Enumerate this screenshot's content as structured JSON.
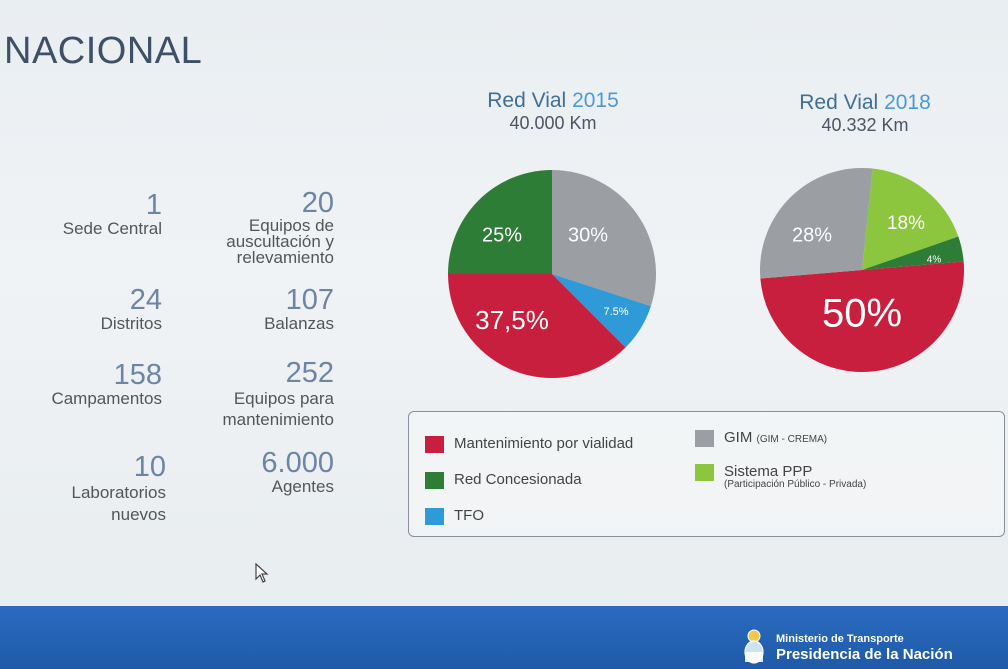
{
  "header": {
    "title": "NACIONAL"
  },
  "stats": [
    {
      "num": "1",
      "label": "Sede Central"
    },
    {
      "num": "20",
      "label": "Equipos de auscultación y relevamiento"
    },
    {
      "num": "24",
      "label": "Distritos"
    },
    {
      "num": "107",
      "label": "Balanzas"
    },
    {
      "num": "158",
      "label": "Campamentos"
    },
    {
      "num": "252",
      "label": "Equipos para mantenimiento"
    },
    {
      "num": "10",
      "label": "Laboratorios nuevos"
    },
    {
      "num": "6.000",
      "label": "Agentes"
    }
  ],
  "chart_data": [
    {
      "type": "pie",
      "title": "Red Vial 2015",
      "title_prefix": "Red Vial",
      "title_year": "2015",
      "subtitle": "40.000 Km",
      "slices": [
        {
          "name": "GIM",
          "value": 30,
          "label": "30%",
          "color": "#9b9ea3"
        },
        {
          "name": "TFO",
          "value": 7.5,
          "label": "7.5%",
          "color": "#2f9ad8"
        },
        {
          "name": "Mantenimiento por vialidad",
          "value": 37.5,
          "label": "37,5%",
          "color": "#c81f3f"
        },
        {
          "name": "Red Concesionada",
          "value": 25,
          "label": "25%",
          "color": "#2e7d37"
        }
      ]
    },
    {
      "type": "pie",
      "title": "Red Vial 2018",
      "title_prefix": "Red Vial",
      "title_year": "2018",
      "subtitle": "40.332 Km",
      "slices": [
        {
          "name": "Sistema PPP",
          "value": 18,
          "label": "18%",
          "color": "#8cc63f"
        },
        {
          "name": "Red Concesionada",
          "value": 4,
          "label": "4%",
          "color": "#2e7d37"
        },
        {
          "name": "Mantenimiento por vialidad",
          "value": 50,
          "label": "50%",
          "color": "#c81f3f"
        },
        {
          "name": "GIM",
          "value": 28,
          "label": "28%",
          "color": "#9b9ea3"
        }
      ]
    }
  ],
  "legend": [
    {
      "label": "Mantenimiento por vialidad",
      "sub": "",
      "color": "#c81f3f"
    },
    {
      "label": "GIM",
      "sub": "(GIM - CREMA)",
      "color": "#9b9ea3"
    },
    {
      "label": "Red Concesionada",
      "sub": "",
      "color": "#2e7d37"
    },
    {
      "label": "Sistema PPP",
      "sub": "(Participación Público - Privada)",
      "color": "#8cc63f"
    },
    {
      "label": "TFO",
      "sub": "",
      "color": "#2f9ad8"
    }
  ],
  "footer": {
    "ministry": "Ministerio de Transporte",
    "presidency": "Presidencia de la Nación"
  }
}
